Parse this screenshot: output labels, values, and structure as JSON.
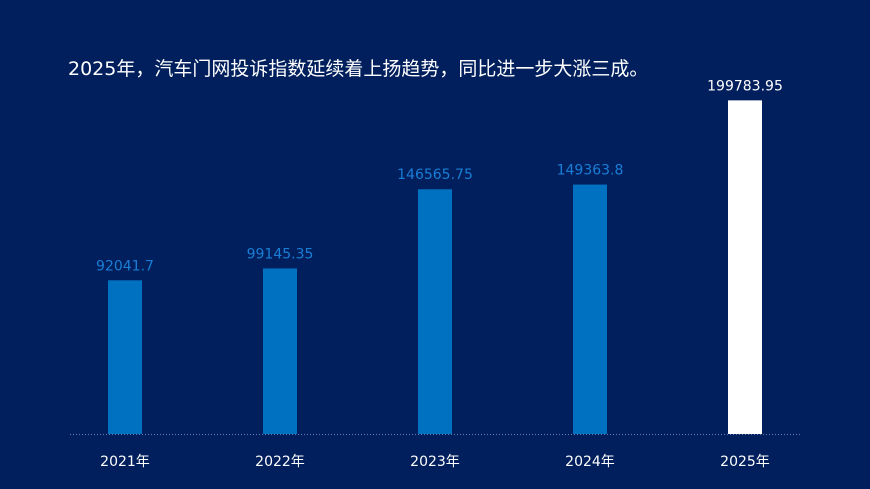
{
  "title": "2025年，汽车门网投诉指数延续着上扬趋势，同比进一步大涨三成。",
  "colors": {
    "background": "#001f5c",
    "bar": "#0070c0",
    "highlight_bar": "#ffffff",
    "bar_label": "#1a7ed6",
    "highlight_label": "#ffffff",
    "axis_text": "#ffffff",
    "baseline": "#6a7fb0"
  },
  "chart_data": {
    "type": "bar",
    "title": "2025年，汽车门网投诉指数延续着上扬趋势，同比进一步大涨三成。",
    "categories": [
      "2021年",
      "2022年",
      "2023年",
      "2024年",
      "2025年"
    ],
    "values": [
      92041.7,
      99145.35,
      146565.75,
      149363.8,
      199783.95
    ],
    "labels": [
      "92041.7",
      "99145.35",
      "146565.75",
      "149363.8",
      "199783.95"
    ],
    "highlight_index": 4,
    "xlabel": "",
    "ylabel": "",
    "ylim": [
      0,
      200000
    ],
    "grid": false,
    "legend": "none"
  }
}
